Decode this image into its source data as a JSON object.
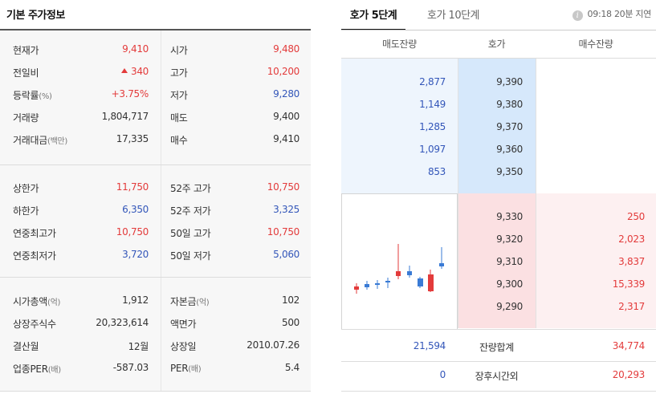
{
  "left": {
    "title": "기본 주가정보",
    "block1": [
      {
        "l1": "현재가",
        "v1": "9,410",
        "c1": "red",
        "l2": "시가",
        "v2": "9,480",
        "c2": "red"
      },
      {
        "l1": "전일비",
        "v1": "340",
        "c1": "red",
        "arrow": "up-triangle-icon",
        "l2": "고가",
        "v2": "10,200",
        "c2": "red"
      },
      {
        "l1": "등락률",
        "l1s": "(%)",
        "v1": "+3.75%",
        "c1": "red",
        "l2": "저가",
        "v2": "9,280",
        "c2": "blue"
      },
      {
        "l1": "거래량",
        "v1": "1,804,717",
        "c1": "dark",
        "l2": "매도",
        "v2": "9,400",
        "c2": "dark"
      },
      {
        "l1": "거래대금",
        "l1s": "(백만)",
        "v1": "17,335",
        "c1": "dark",
        "l2": "매수",
        "v2": "9,410",
        "c2": "dark"
      }
    ],
    "block2": [
      {
        "l1": "상한가",
        "v1": "11,750",
        "c1": "red",
        "l2": "52주 고가",
        "v2": "10,750",
        "c2": "red"
      },
      {
        "l1": "하한가",
        "v1": "6,350",
        "c1": "blue",
        "l2": "52주 저가",
        "v2": "3,325",
        "c2": "blue"
      },
      {
        "l1": "연중최고가",
        "v1": "10,750",
        "c1": "red",
        "l2": "50일 고가",
        "v2": "10,750",
        "c2": "red"
      },
      {
        "l1": "연중최저가",
        "v1": "3,720",
        "c1": "blue",
        "l2": "50일 저가",
        "v2": "5,060",
        "c2": "blue"
      }
    ],
    "block3": [
      {
        "l1": "시가총액",
        "l1s": "(억)",
        "v1": "1,912",
        "c1": "dark",
        "l2": "자본금",
        "l2s": "(억)",
        "v2": "102",
        "c2": "dark"
      },
      {
        "l1": "상장주식수",
        "v1": "20,323,614",
        "c1": "dark",
        "l2": "액면가",
        "v2": "500",
        "c2": "dark"
      },
      {
        "l1": "결산월",
        "v1": "12월",
        "c1": "dark",
        "l2": "상장일",
        "v2": "2010.07.26",
        "c2": "dark"
      },
      {
        "l1": "업종PER",
        "l1s": "(배)",
        "v1": "-587.03",
        "c1": "dark",
        "l2": "PER",
        "l2s": "(배)",
        "v2": "5.4",
        "c2": "dark"
      }
    ]
  },
  "right": {
    "tabs": [
      {
        "label": "호가 5단계",
        "active": true
      },
      {
        "label": "호가 10단계",
        "active": false
      }
    ],
    "info_icon": "info-icon",
    "info_icon_glyph": "i",
    "delay_text": "09:18 20분 지연",
    "headers": {
      "ask_volume": "매도잔량",
      "price": "호가",
      "bid_volume": "매수잔량"
    },
    "asks": [
      {
        "volume": "2,877",
        "price": "9,390"
      },
      {
        "volume": "1,149",
        "price": "9,380"
      },
      {
        "volume": "1,285",
        "price": "9,370"
      },
      {
        "volume": "1,097",
        "price": "9,360"
      },
      {
        "volume": "853",
        "price": "9,350"
      }
    ],
    "bids": [
      {
        "price": "9,330",
        "volume": "250"
      },
      {
        "price": "9,320",
        "volume": "2,023"
      },
      {
        "price": "9,310",
        "volume": "3,837"
      },
      {
        "price": "9,300",
        "volume": "15,339"
      },
      {
        "price": "9,290",
        "volume": "2,317"
      }
    ],
    "total": {
      "ask": "21,594",
      "label": "잔량합계",
      "bid": "34,774"
    },
    "after_hours": {
      "ask": "0",
      "label": "장후시간외",
      "bid": "20,293"
    },
    "colors": {
      "up": "#e33b3b",
      "down": "#3356b9"
    }
  }
}
